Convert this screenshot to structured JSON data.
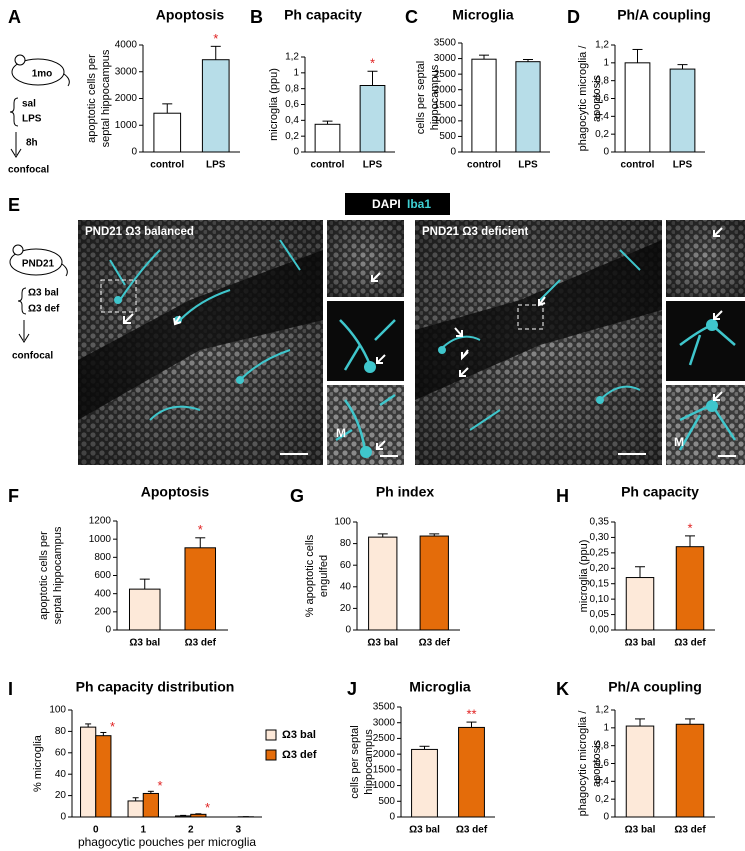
{
  "chart_data": [
    {
      "type": "bar",
      "panel": "A",
      "title": "Apoptosis",
      "ylabel": [
        "apoptotic cells per",
        "septal hippocampus"
      ],
      "categories": [
        "control",
        "LPS"
      ],
      "values": [
        1450,
        3450
      ],
      "errors": [
        350,
        500
      ],
      "colors": [
        "#ffffff",
        "#b7dde8"
      ],
      "significance": [
        null,
        "*"
      ],
      "ylim": [
        0,
        4000
      ],
      "yticks": [
        0,
        1000,
        2000,
        3000,
        4000
      ]
    },
    {
      "type": "bar",
      "panel": "B",
      "title": "Ph capacity",
      "ylabel": [
        "microglia (ppu)"
      ],
      "categories": [
        "control",
        "LPS"
      ],
      "values": [
        0.35,
        0.84
      ],
      "errors": [
        0.04,
        0.18
      ],
      "colors": [
        "#ffffff",
        "#b7dde8"
      ],
      "significance": [
        null,
        "*"
      ],
      "ylim": [
        0,
        1.2
      ],
      "yticks": [
        0,
        {
          "value": 0.2,
          "label": "0,2"
        },
        {
          "value": 0.4,
          "label": "0,4"
        },
        {
          "value": 0.6,
          "label": "0,6"
        },
        {
          "value": 0.8,
          "label": "0,8"
        },
        1,
        {
          "value": 1.2,
          "label": "1,2"
        }
      ]
    },
    {
      "type": "bar",
      "panel": "C",
      "title": "Microglia",
      "ylabel": [
        "cells per septal",
        "hippocampus"
      ],
      "categories": [
        "control",
        "LPS"
      ],
      "values": [
        2980,
        2900
      ],
      "errors": [
        130,
        70
      ],
      "colors": [
        "#ffffff",
        "#b7dde8"
      ],
      "significance": [
        null,
        null
      ],
      "ylim": [
        0,
        3500
      ],
      "yticks": [
        0,
        500,
        1000,
        1500,
        2000,
        2500,
        3000,
        3500
      ]
    },
    {
      "type": "bar",
      "panel": "D",
      "title": "Ph/A coupling",
      "ylabel": [
        "phagocytic microglia /",
        "apoptosis"
      ],
      "categories": [
        "control",
        "LPS"
      ],
      "values": [
        1.0,
        0.93
      ],
      "errors": [
        0.15,
        0.05
      ],
      "colors": [
        "#ffffff",
        "#b7dde8"
      ],
      "significance": [
        null,
        null
      ],
      "ylim": [
        0,
        1.2
      ],
      "yticks": [
        0,
        {
          "value": 0.2,
          "label": "0,2"
        },
        {
          "value": 0.4,
          "label": "0,4"
        },
        {
          "value": 0.6,
          "label": "0,6"
        },
        {
          "value": 0.8,
          "label": "0,8"
        },
        1,
        {
          "value": 1.2,
          "label": "1,2"
        }
      ]
    },
    {
      "type": "bar",
      "panel": "F",
      "title": "Apoptosis",
      "ylabel": [
        "apoptotic cells per",
        "septal hippocampus"
      ],
      "categories": [
        "Ω3 bal",
        "Ω3 def"
      ],
      "values": [
        450,
        905
      ],
      "errors": [
        110,
        110
      ],
      "colors": [
        "#fde9d9",
        "#e46c0a"
      ],
      "significance": [
        null,
        "*"
      ],
      "ylim": [
        0,
        1200
      ],
      "yticks": [
        0,
        200,
        400,
        600,
        800,
        1000,
        1200
      ]
    },
    {
      "type": "bar",
      "panel": "G",
      "title": "Ph index",
      "ylabel": [
        "% apoptotic cells",
        "engulfed"
      ],
      "categories": [
        "Ω3 bal",
        "Ω3 def"
      ],
      "values": [
        86,
        87
      ],
      "errors": [
        3,
        2
      ],
      "colors": [
        "#fde9d9",
        "#e46c0a"
      ],
      "significance": [
        null,
        null
      ],
      "ylim": [
        0,
        100
      ],
      "yticks": [
        0,
        20,
        40,
        60,
        80,
        100
      ]
    },
    {
      "type": "bar",
      "panel": "H",
      "title": "Ph capacity",
      "ylabel": [
        "microglia (ppu)"
      ],
      "categories": [
        "Ω3 bal",
        "Ω3 def"
      ],
      "values": [
        0.17,
        0.27
      ],
      "errors": [
        0.035,
        0.035
      ],
      "colors": [
        "#fde9d9",
        "#e46c0a"
      ],
      "significance": [
        null,
        "*"
      ],
      "ylim": [
        0,
        0.35
      ],
      "yticks": [
        {
          "value": 0,
          "label": "0,00"
        },
        {
          "value": 0.05,
          "label": "0,05"
        },
        {
          "value": 0.1,
          "label": "0,10"
        },
        {
          "value": 0.15,
          "label": "0,15"
        },
        {
          "value": 0.2,
          "label": "0,20"
        },
        {
          "value": 0.25,
          "label": "0,25"
        },
        {
          "value": 0.3,
          "label": "0,30"
        },
        {
          "value": 0.35,
          "label": "0,35"
        }
      ]
    },
    {
      "type": "grouped_bar",
      "panel": "I",
      "title": "Ph capacity distribution",
      "ylabel": [
        "% microglia"
      ],
      "xlabel": "phagocytic pouches per microglia",
      "categories": [
        "0",
        "1",
        "2",
        "3"
      ],
      "series": [
        {
          "name": "Ω3 bal",
          "color": "#fde9d9",
          "values": [
            84,
            15,
            1,
            0
          ],
          "errors": [
            3,
            3,
            0.5,
            0
          ],
          "significance": [
            null,
            null,
            null,
            null
          ]
        },
        {
          "name": "Ω3 def",
          "color": "#e46c0a",
          "values": [
            76,
            22,
            2.5,
            0.2
          ],
          "errors": [
            3,
            2,
            0.5,
            0.1
          ],
          "significance": [
            "*",
            "*",
            "*",
            null
          ]
        }
      ],
      "ylim": [
        0,
        100
      ],
      "yticks": [
        0,
        20,
        40,
        60,
        80,
        100
      ]
    },
    {
      "type": "bar",
      "panel": "J",
      "title": "Microglia",
      "ylabel": [
        "cells per septal",
        "hippocampus"
      ],
      "categories": [
        "Ω3 bal",
        "Ω3 def"
      ],
      "values": [
        2150,
        2850
      ],
      "errors": [
        100,
        170
      ],
      "colors": [
        "#fde9d9",
        "#e46c0a"
      ],
      "significance": [
        null,
        "**"
      ],
      "ylim": [
        0,
        3500
      ],
      "yticks": [
        0,
        500,
        1000,
        1500,
        2000,
        2500,
        3000,
        3500
      ]
    },
    {
      "type": "bar",
      "panel": "K",
      "title": "Ph/A coupling",
      "ylabel": [
        "phagocytic microglia /",
        "apoptosis"
      ],
      "categories": [
        "Ω3 bal",
        "Ω3 def"
      ],
      "values": [
        1.02,
        1.04
      ],
      "errors": [
        0.08,
        0.06
      ],
      "colors": [
        "#fde9d9",
        "#e46c0a"
      ],
      "significance": [
        null,
        null
      ],
      "ylim": [
        0,
        1.2
      ],
      "yticks": [
        0,
        {
          "value": 0.2,
          "label": "0,2"
        },
        {
          "value": 0.4,
          "label": "0,4"
        },
        {
          "value": 0.6,
          "label": "0,6"
        },
        {
          "value": 0.8,
          "label": "0,8"
        },
        1,
        {
          "value": 1.2,
          "label": "1,2"
        }
      ]
    }
  ],
  "schematic_a": {
    "age": "1mo",
    "treatments": [
      "sal",
      "LPS"
    ],
    "time": "8h",
    "method": "confocal"
  },
  "panel_e": {
    "letter": "E",
    "stain": [
      "DAPI",
      "Iba1"
    ],
    "images": [
      "PND21 Ω3 balanced",
      "PND21 Ω3 deficient"
    ],
    "inset_labels": [
      "M",
      "M"
    ],
    "schematic": {
      "age": "PND21",
      "diets": [
        "Ω3 bal",
        "Ω3 def"
      ],
      "method": "confocal"
    }
  }
}
